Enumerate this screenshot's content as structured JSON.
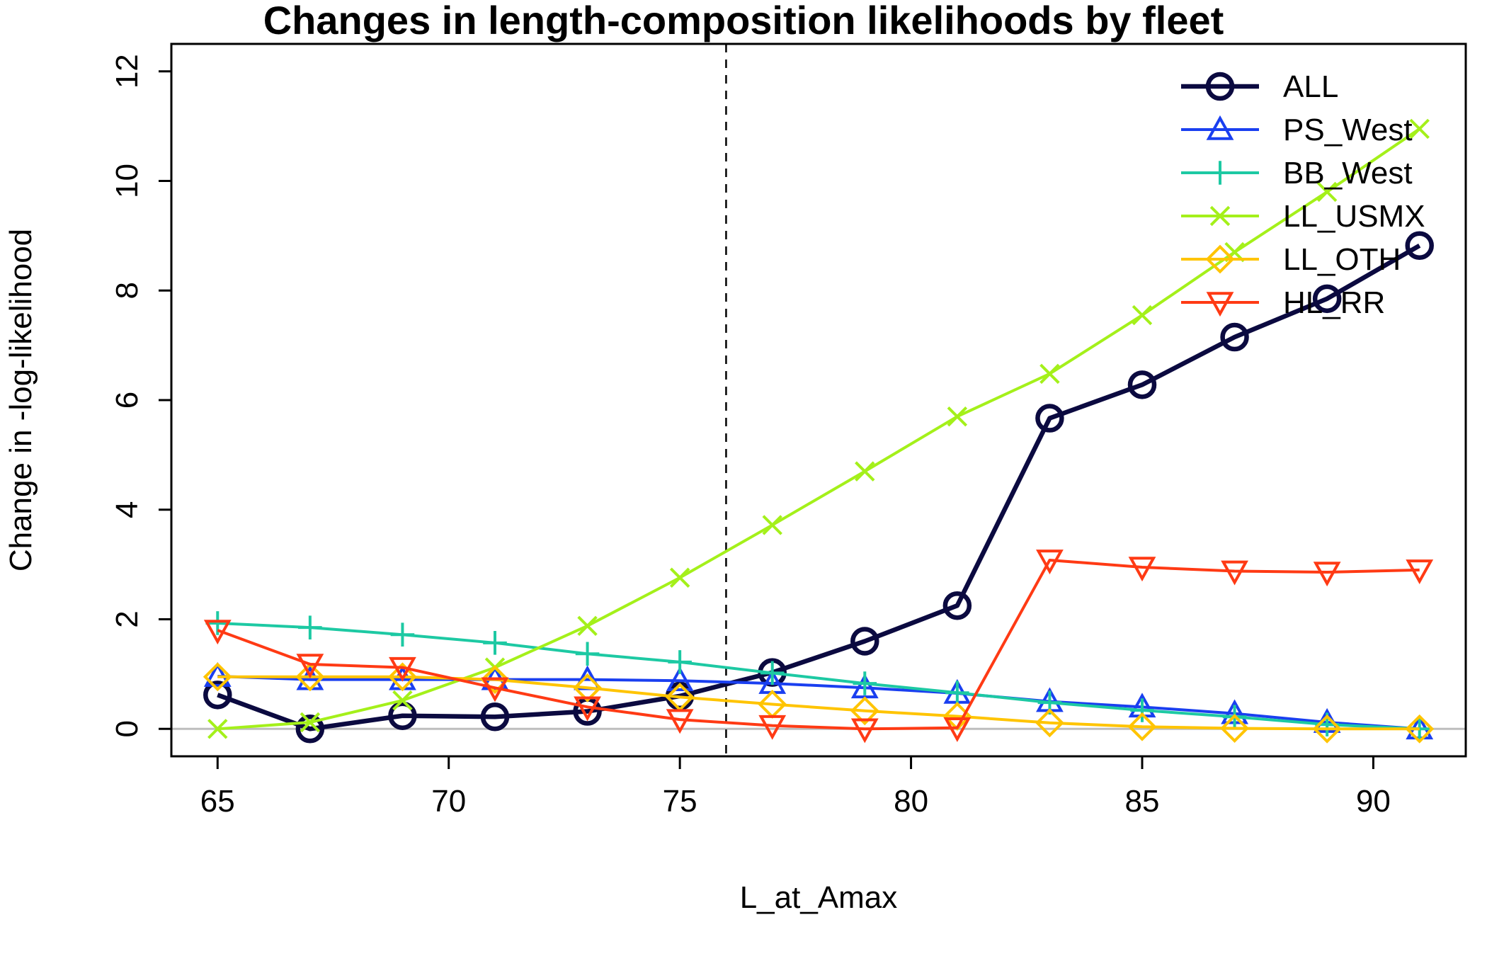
{
  "chart_data": {
    "type": "line",
    "title": "Changes in length-composition likelihoods by fleet",
    "xlabel": "L_at_Amax",
    "ylabel": "Change in -log-likelihood",
    "xlim": [
      64,
      92
    ],
    "ylim": [
      -0.5,
      12.5
    ],
    "xticks": [
      65,
      70,
      75,
      80,
      85,
      90
    ],
    "yticks": [
      0,
      2,
      4,
      6,
      8,
      10,
      12
    ],
    "x": [
      65,
      67,
      69,
      71,
      73,
      75,
      77,
      79,
      81,
      83,
      85,
      87,
      89,
      91
    ],
    "reference_vline": 76,
    "reference_hline": 0,
    "grid": false,
    "legend_position": "top-right",
    "series": [
      {
        "name": "ALL",
        "color": "#0b0a40",
        "marker": "circle",
        "values": [
          0.62,
          0.0,
          0.24,
          0.22,
          0.32,
          0.6,
          1.03,
          1.6,
          2.25,
          5.67,
          6.28,
          7.15,
          7.85,
          8.82
        ]
      },
      {
        "name": "PS_West",
        "color": "#1a3ff0",
        "marker": "triangle-up",
        "values": [
          0.96,
          0.9,
          0.9,
          0.9,
          0.9,
          0.88,
          0.83,
          0.75,
          0.65,
          0.5,
          0.4,
          0.28,
          0.12,
          0.0
        ]
      },
      {
        "name": "BB_West",
        "color": "#1dc9a3",
        "marker": "plus",
        "values": [
          1.93,
          1.85,
          1.72,
          1.57,
          1.37,
          1.22,
          1.02,
          0.83,
          0.66,
          0.48,
          0.34,
          0.22,
          0.08,
          0.0
        ]
      },
      {
        "name": "LL_USMX",
        "color": "#a4f01a",
        "marker": "cross",
        "values": [
          0.0,
          0.12,
          0.52,
          1.12,
          1.88,
          2.76,
          3.72,
          4.7,
          5.7,
          6.48,
          7.55,
          8.7,
          9.8,
          10.95
        ]
      },
      {
        "name": "LL_OTH",
        "color": "#ffc400",
        "marker": "diamond",
        "values": [
          0.95,
          0.95,
          0.95,
          0.9,
          0.75,
          0.58,
          0.45,
          0.33,
          0.23,
          0.11,
          0.04,
          0.01,
          0.0,
          0.0
        ]
      },
      {
        "name": "HL_RR",
        "color": "#ff3a14",
        "marker": "triangle-down",
        "values": [
          1.8,
          1.18,
          1.12,
          0.75,
          0.4,
          0.17,
          0.06,
          0.0,
          0.02,
          3.08,
          2.95,
          2.88,
          2.86,
          2.9
        ]
      }
    ]
  }
}
